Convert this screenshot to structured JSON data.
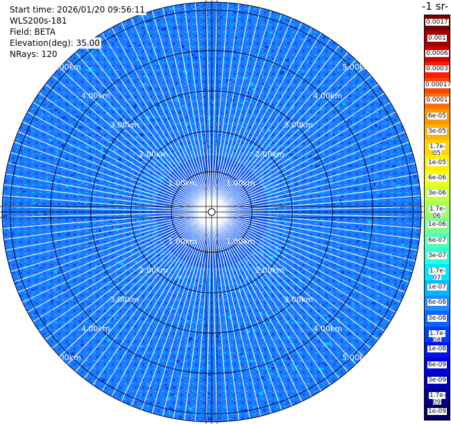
{
  "info": {
    "start_time": "Start time: 2026/01/20 09:56:11",
    "instrument": "WLS200s-181",
    "field": "Field: BETA",
    "elevation": "Elevation(deg): 35.00",
    "nrays": "NRays: 120"
  },
  "colorbar_title": "-1 sr-",
  "chart_data": {
    "type": "heatmap",
    "subtype": "polar-ppi",
    "field": "BETA",
    "nrays": 120,
    "range_max_km": 5.2,
    "ring_ranges_km": [
      1.0,
      2.0,
      3.0,
      4.0,
      5.0
    ],
    "ring_labels": [
      "1.00km",
      "2.00km",
      "3.00km",
      "4.00km",
      "5.00km"
    ],
    "colorbar": {
      "levels": [
        "0.0017",
        "0.001",
        "0.0006",
        "0.0003",
        "0.00017",
        "0.0001",
        "6e-05",
        "3e-05",
        "1.7e-05",
        "1e-05",
        "6e-06",
        "3e-06",
        "1.7e-06",
        "1e-06",
        "6e-07",
        "3e-07",
        "1.7e-07",
        "1e-07",
        "6e-08",
        "3e-08",
        "1.7e-08",
        "1e-08",
        "6e-09",
        "3e-09",
        "1.7e-09",
        "1e-09"
      ],
      "colors": [
        "#7a0000",
        "#a40000",
        "#d20000",
        "#ff1a00",
        "#ff4400",
        "#ff6e00",
        "#ff9600",
        "#ffb400",
        "#ffd200",
        "#ffee00",
        "#f0ff14",
        "#c8ff3c",
        "#a0ff64",
        "#78ff8c",
        "#50ffb4",
        "#28ffdc",
        "#00e6ff",
        "#00b8ff",
        "#1e8cff",
        "#0a64ff",
        "#003cff",
        "#0014f0",
        "#0000dc",
        "#0000b4",
        "#00008c",
        "#000064"
      ]
    },
    "dominant_level": "3e-08"
  }
}
